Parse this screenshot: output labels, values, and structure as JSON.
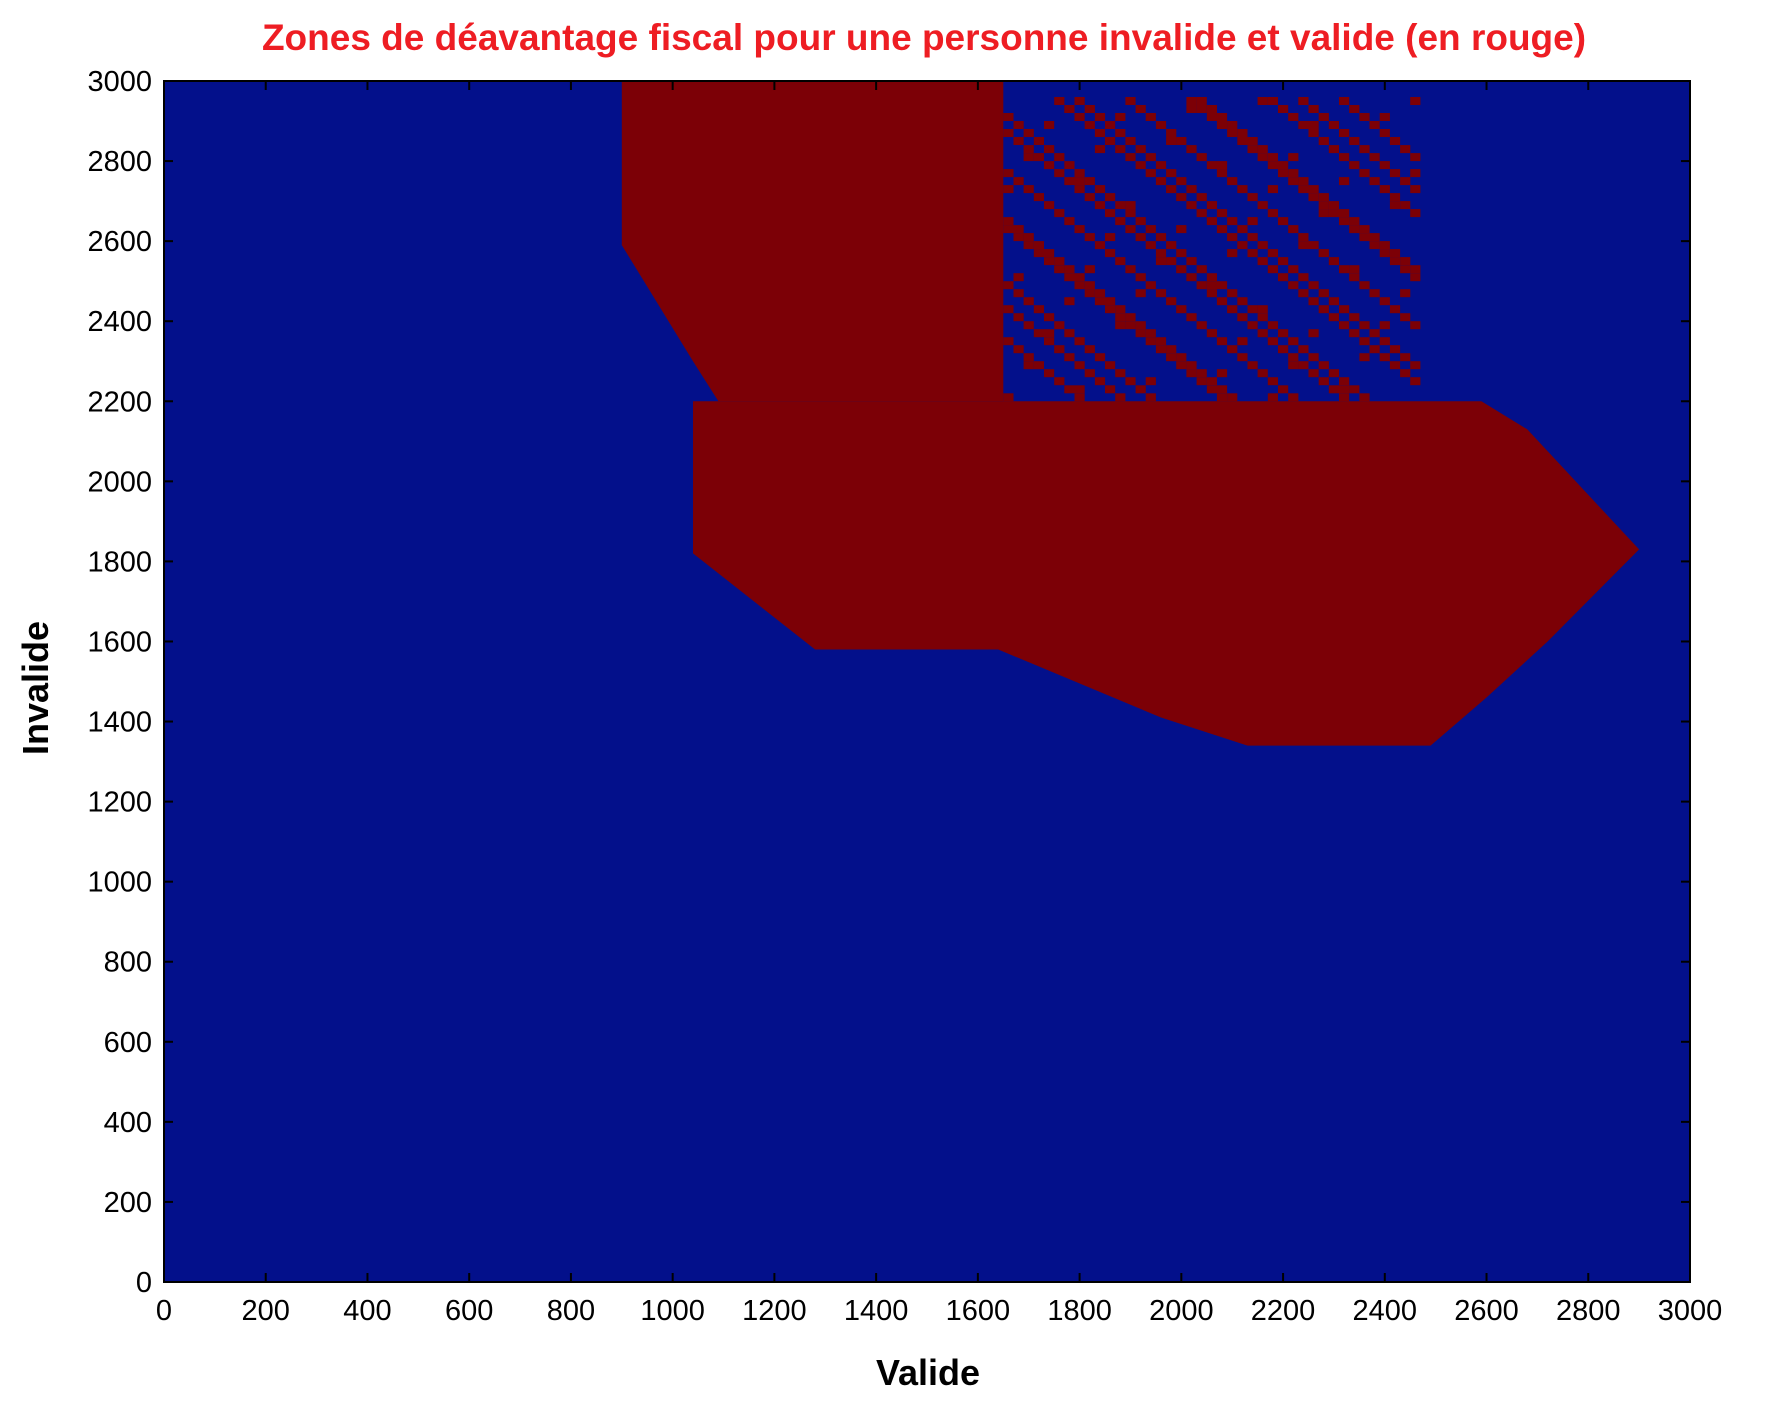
{
  "chart_data": {
    "type": "heatmap",
    "title": "Zones de déavantage fiscal pour une personne invalide et valide (en rouge)",
    "xlabel": "Valide",
    "ylabel": "Invalide",
    "xlim": [
      0,
      3000
    ],
    "ylim": [
      0,
      3000
    ],
    "xticks": [
      0,
      200,
      400,
      600,
      800,
      1000,
      1200,
      1400,
      1600,
      1800,
      2000,
      2200,
      2400,
      2600,
      2800,
      3000
    ],
    "yticks": [
      0,
      200,
      400,
      600,
      800,
      1000,
      1200,
      1400,
      1600,
      1800,
      2000,
      2200,
      2400,
      2600,
      2800,
      3000
    ],
    "grid": false,
    "colors": {
      "background": "#03108b",
      "disadvantage": "#7c0006",
      "title": "#ee1d23"
    },
    "disadvantage_regions": [
      {
        "name": "upper-left",
        "points": [
          [
            900,
            3000
          ],
          [
            1650,
            3000
          ],
          [
            1650,
            2200
          ],
          [
            1090,
            2200
          ],
          [
            1040,
            2300
          ],
          [
            900,
            2590
          ]
        ]
      },
      {
        "name": "middle",
        "points": [
          [
            1040,
            2200
          ],
          [
            2590,
            2200
          ],
          [
            2680,
            2130
          ],
          [
            2900,
            1830
          ],
          [
            2720,
            1600
          ],
          [
            2600,
            1460
          ],
          [
            2490,
            1340
          ],
          [
            2130,
            1340
          ],
          [
            1960,
            1410
          ],
          [
            1640,
            1580
          ],
          [
            1280,
            1580
          ],
          [
            1040,
            1820
          ]
        ]
      }
    ],
    "speckle_region": {
      "x": [
        1650,
        2470
      ],
      "y": [
        2200,
        2960
      ],
      "step": 20,
      "description_free": true
    }
  }
}
